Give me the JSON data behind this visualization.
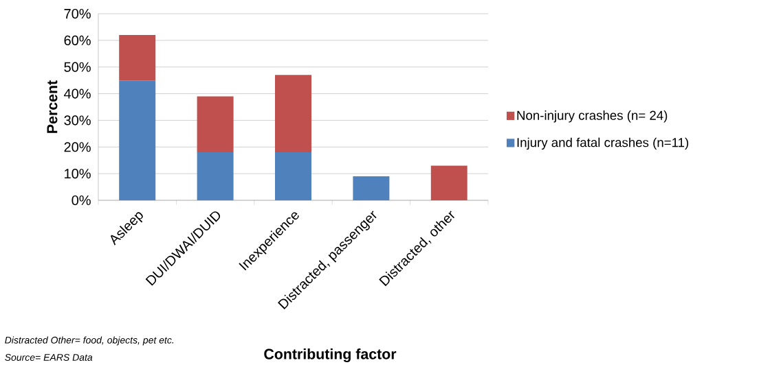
{
  "chart_data": {
    "type": "bar",
    "stacked": true,
    "xlabel": "Contributing factor",
    "ylabel": "Percent",
    "categories": [
      "Asleep",
      "DUI/DWAI/DUID",
      "Inexperience",
      "Distracted, passenger",
      "Distracted, other"
    ],
    "series": [
      {
        "name": "Injury and fatal crashes (n=11)",
        "color": "#4f81bd",
        "values": [
          45,
          18,
          18,
          9,
          0
        ]
      },
      {
        "name": "Non-injury crashes (n= 24)",
        "color": "#c0504d",
        "values": [
          17,
          21,
          29,
          0,
          13
        ]
      }
    ],
    "ylim": [
      0,
      70
    ],
    "yticks": [
      {
        "value": 0,
        "label": "0%"
      },
      {
        "value": 10,
        "label": "10%"
      },
      {
        "value": 20,
        "label": "20%"
      },
      {
        "value": 30,
        "label": "30%"
      },
      {
        "value": 40,
        "label": "40%"
      },
      {
        "value": 50,
        "label": "50%"
      },
      {
        "value": 60,
        "label": "60%"
      },
      {
        "value": 70,
        "label": "70%"
      }
    ],
    "grid": "y",
    "legend": "right",
    "annotations": [
      "Distracted Other= food, objects, pet etc.",
      "Source= EARS Data"
    ]
  }
}
